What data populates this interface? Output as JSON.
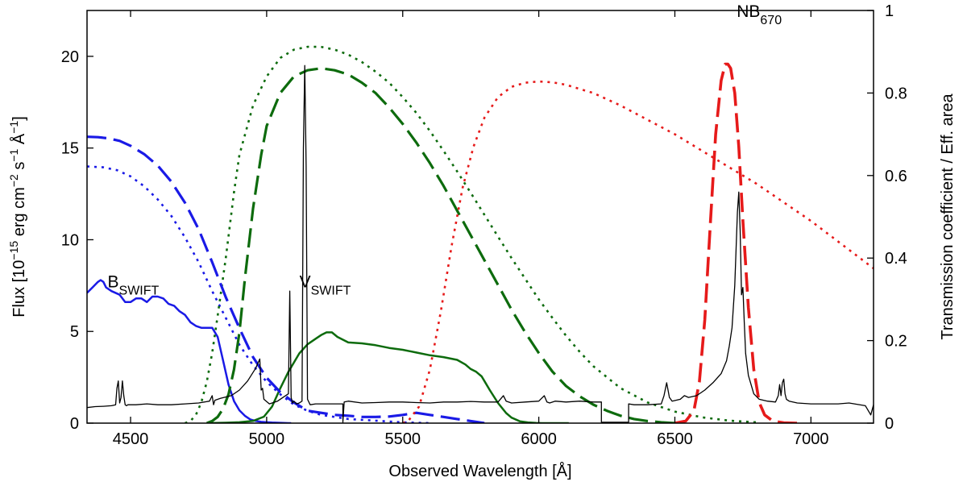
{
  "chart_data": {
    "type": "line",
    "title": "",
    "xlabel": "Observed Wavelength [Å]",
    "ylabel_left": {
      "main": "Flux [10",
      "exp1": "−15",
      "mid": " erg cm",
      "exp2": "−2",
      "mid2": " s",
      "exp3": "−1",
      "mid3": " Å",
      "exp4": "−1",
      "end": "]"
    },
    "ylabel_right": "Transmission coefficient / Eff. area",
    "xlim": [
      4340,
      7230
    ],
    "ylim_left": [
      0,
      22.5
    ],
    "ylim_right": [
      0,
      1
    ],
    "x_ticks": [
      4500,
      5000,
      5500,
      6000,
      6500,
      7000
    ],
    "y_ticks_left": [
      0,
      5,
      10,
      15,
      20
    ],
    "y_ticks_right": [
      0,
      0.2,
      0.4,
      0.6,
      0.8,
      1
    ],
    "annotations": [
      {
        "name": "label-b-swift",
        "base": "B",
        "sub": "SWIFT",
        "x": 4510,
        "y_right": 0.345
      },
      {
        "name": "label-v-swift",
        "base": "V",
        "sub": "SWIFT",
        "x": 5215,
        "y_right": 0.345
      },
      {
        "name": "label-nb670",
        "base": "NB",
        "sub": "670",
        "x": 6810,
        "y_right": 1.0
      }
    ],
    "series": [
      {
        "name": "Spectrum (black)",
        "axis": "left",
        "color": "#000000",
        "style": "solid",
        "width": 1.3,
        "x": [
          4340,
          4370,
          4400,
          4430,
          4445,
          4450,
          4455,
          4460,
          4465,
          4470,
          4475,
          4480,
          4485,
          4490,
          4520,
          4560,
          4600,
          4650,
          4700,
          4750,
          4790,
          4800,
          4805,
          4810,
          4830,
          4870,
          4900,
          4930,
          4960,
          4975,
          4980,
          4985,
          4990,
          5010,
          5040,
          5060,
          5080,
          5085,
          5090,
          5095,
          5100,
          5110,
          5120,
          5130,
          5135,
          5140,
          5145,
          5150,
          5160,
          5180,
          5200,
          5220,
          5240,
          5270,
          5280,
          5280,
          5285,
          5300,
          5350,
          5400,
          5450,
          5500,
          5550,
          5600,
          5650,
          5700,
          5750,
          5800,
          5850,
          5870,
          5880,
          5900,
          5950,
          6000,
          6020,
          6030,
          6040,
          6060,
          6100,
          6150,
          6200,
          6230,
          6230,
          6280,
          6330,
          6330,
          6350,
          6400,
          6450,
          6460,
          6470,
          6480,
          6490,
          6520,
          6535,
          6550,
          6580,
          6610,
          6640,
          6670,
          6690,
          6700,
          6710,
          6720,
          6730,
          6735,
          6740,
          6745,
          6750,
          6755,
          6760,
          6770,
          6790,
          6810,
          6840,
          6870,
          6880,
          6885,
          6890,
          6895,
          6900,
          6905,
          6910,
          6920,
          6950,
          7000,
          7050,
          7100,
          7140,
          7200,
          7220,
          7230
        ],
        "y": [
          0.85,
          0.9,
          0.92,
          0.95,
          1.0,
          1.9,
          2.3,
          1.1,
          1.4,
          2.3,
          1.5,
          1.0,
          0.95,
          1.0,
          1.0,
          1.05,
          1.0,
          1.0,
          1.05,
          1.1,
          1.2,
          1.5,
          1.0,
          1.25,
          1.35,
          1.5,
          1.8,
          2.3,
          3.0,
          3.5,
          1.8,
          1.9,
          1.3,
          1.05,
          1.2,
          1.4,
          1.6,
          7.2,
          1.4,
          1.1,
          1.2,
          1.05,
          1.1,
          1.2,
          15.0,
          19.5,
          14.0,
          1.3,
          1.0,
          1.05,
          1.05,
          1.05,
          1.05,
          1.05,
          1.05,
          0.05,
          1.15,
          1.2,
          1.1,
          1.12,
          1.15,
          1.15,
          1.12,
          1.1,
          1.15,
          1.15,
          1.18,
          1.15,
          1.15,
          1.5,
          1.2,
          1.1,
          1.15,
          1.2,
          1.5,
          1.15,
          1.1,
          1.2,
          1.15,
          1.2,
          1.15,
          1.15,
          0.05,
          0.05,
          0.05,
          1.05,
          1.0,
          1.0,
          1.05,
          1.5,
          2.2,
          1.4,
          1.2,
          1.3,
          1.5,
          1.4,
          1.5,
          1.8,
          2.2,
          2.7,
          3.4,
          4.2,
          5.2,
          7.5,
          11.5,
          12.6,
          10.5,
          7.0,
          7.4,
          5.5,
          3.8,
          2.6,
          1.6,
          1.3,
          1.2,
          1.15,
          1.5,
          2.1,
          1.5,
          2.2,
          2.4,
          1.6,
          1.3,
          1.2,
          1.1,
          1.05,
          1.05,
          1.05,
          1.1,
          0.95,
          0.45,
          1.0
        ]
      },
      {
        "name": "Spectrum in B_SWIFT (blue solid)",
        "axis": "left",
        "color": "#1a1ae6",
        "style": "solid",
        "width": 2.5,
        "x": [
          4340,
          4360,
          4380,
          4390,
          4400,
          4410,
          4430,
          4460,
          4480,
          4500,
          4520,
          4540,
          4560,
          4580,
          4600,
          4620,
          4640,
          4660,
          4680,
          4700,
          4720,
          4740,
          4760,
          4780,
          4800,
          4820,
          4840,
          4860,
          4880,
          4900,
          4920,
          4940,
          4960,
          4980,
          5000,
          5020,
          5040,
          5060,
          5080,
          5090
        ],
        "y": [
          7.1,
          7.4,
          7.7,
          7.8,
          7.7,
          7.4,
          7.2,
          7.0,
          6.6,
          6.6,
          6.8,
          6.8,
          6.6,
          6.9,
          6.9,
          6.8,
          6.5,
          6.4,
          6.1,
          5.9,
          5.5,
          5.3,
          5.2,
          5.2,
          5.2,
          4.7,
          3.4,
          2.1,
          1.2,
          0.7,
          0.4,
          0.2,
          0.12,
          0.07,
          0.05,
          0.03,
          0.02,
          0.01,
          0.0,
          0.0
        ]
      },
      {
        "name": "Spectrum in V_SWIFT (green solid)",
        "axis": "left",
        "color": "#0d6b0d",
        "style": "solid",
        "width": 2.5,
        "x": [
          4780,
          4850,
          4900,
          4950,
          4990,
          5020,
          5050,
          5080,
          5100,
          5120,
          5150,
          5180,
          5200,
          5220,
          5240,
          5260,
          5300,
          5350,
          5400,
          5450,
          5500,
          5550,
          5600,
          5650,
          5700,
          5730,
          5750,
          5770,
          5790,
          5800,
          5820,
          5850,
          5880,
          5900,
          5930,
          5960,
          5990,
          6010,
          6050,
          6080,
          6110
        ],
        "y": [
          0.0,
          0.02,
          0.05,
          0.12,
          0.35,
          0.9,
          1.9,
          2.8,
          3.3,
          3.8,
          4.3,
          4.6,
          4.8,
          4.95,
          4.95,
          4.7,
          4.4,
          4.35,
          4.25,
          4.1,
          4.0,
          3.85,
          3.7,
          3.6,
          3.45,
          3.2,
          2.95,
          2.8,
          2.55,
          2.3,
          1.8,
          1.1,
          0.55,
          0.3,
          0.1,
          0.04,
          0.01,
          0.0,
          0.0,
          0.0,
          0.0
        ]
      },
      {
        "name": "B_SWIFT effective area (blue dashed)",
        "axis": "right",
        "color": "#1a1ae6",
        "style": "dashed",
        "width": 3.2,
        "x": [
          4340,
          4380,
          4420,
          4460,
          4500,
          4550,
          4600,
          4650,
          4700,
          4750,
          4800,
          4850,
          4900,
          4950,
          5000,
          5050,
          5100,
          5150,
          5200,
          5250,
          5300,
          5350,
          5400,
          5450,
          5500,
          5550,
          5600,
          5650,
          5700,
          5750,
          5800
        ],
        "y": [
          0.694,
          0.693,
          0.69,
          0.684,
          0.672,
          0.652,
          0.624,
          0.585,
          0.534,
          0.47,
          0.39,
          0.305,
          0.23,
          0.16,
          0.11,
          0.075,
          0.05,
          0.03,
          0.025,
          0.02,
          0.018,
          0.015,
          0.015,
          0.016,
          0.02,
          0.025,
          0.02,
          0.015,
          0.01,
          0.005,
          0.0
        ]
      },
      {
        "name": "B_SWIFT transmission (blue dotted)",
        "axis": "right",
        "color": "#1a1ae6",
        "style": "dotted",
        "width": 2.6,
        "x": [
          4340,
          4400,
          4450,
          4500,
          4550,
          4600,
          4650,
          4700,
          4750,
          4800,
          4850,
          4900,
          4950,
          5000,
          5050,
          5100,
          5150,
          5200,
          5250,
          5300,
          5350,
          5400,
          5450,
          5500,
          5550,
          5600
        ],
        "y": [
          0.622,
          0.62,
          0.613,
          0.598,
          0.574,
          0.542,
          0.502,
          0.45,
          0.39,
          0.32,
          0.255,
          0.19,
          0.14,
          0.1,
          0.07,
          0.045,
          0.03,
          0.02,
          0.015,
          0.01,
          0.008,
          0.006,
          0.004,
          0.002,
          0.001,
          0.0
        ]
      },
      {
        "name": "V_SWIFT effective area (green dashed)",
        "axis": "right",
        "color": "#0d6b0d",
        "style": "dashed",
        "width": 3.2,
        "x": [
          4780,
          4800,
          4820,
          4840,
          4860,
          4880,
          4900,
          4920,
          4950,
          4980,
          5000,
          5050,
          5100,
          5150,
          5200,
          5250,
          5300,
          5350,
          5400,
          5450,
          5500,
          5550,
          5600,
          5650,
          5700,
          5750,
          5800,
          5850,
          5900,
          5950,
          6000,
          6050,
          6100,
          6150,
          6200,
          6250,
          6300,
          6350,
          6400,
          6450,
          6500
        ],
        "y": [
          0.0,
          0.005,
          0.015,
          0.035,
          0.07,
          0.13,
          0.22,
          0.35,
          0.52,
          0.65,
          0.72,
          0.8,
          0.84,
          0.855,
          0.86,
          0.855,
          0.845,
          0.825,
          0.8,
          0.765,
          0.725,
          0.68,
          0.63,
          0.575,
          0.515,
          0.455,
          0.395,
          0.335,
          0.275,
          0.22,
          0.17,
          0.125,
          0.09,
          0.065,
          0.045,
          0.03,
          0.018,
          0.01,
          0.005,
          0.002,
          0.0
        ]
      },
      {
        "name": "V_SWIFT transmission (green dotted)",
        "axis": "right",
        "color": "#0d6b0d",
        "style": "dotted",
        "width": 2.6,
        "x": [
          4700,
          4720,
          4740,
          4760,
          4780,
          4800,
          4820,
          4850,
          4880,
          4900,
          4950,
          5000,
          5050,
          5100,
          5150,
          5200,
          5250,
          5300,
          5350,
          5400,
          5450,
          5500,
          5550,
          5600,
          5650,
          5700,
          5750,
          5800,
          5850,
          5900,
          5950,
          6000,
          6050,
          6100,
          6150,
          6200,
          6300,
          6400,
          6500,
          6600,
          6700,
          6800
        ],
        "y": [
          0.0,
          0.005,
          0.02,
          0.05,
          0.1,
          0.17,
          0.26,
          0.4,
          0.56,
          0.65,
          0.77,
          0.84,
          0.885,
          0.905,
          0.912,
          0.912,
          0.905,
          0.893,
          0.875,
          0.852,
          0.825,
          0.79,
          0.752,
          0.708,
          0.66,
          0.61,
          0.558,
          0.505,
          0.452,
          0.4,
          0.35,
          0.3,
          0.255,
          0.212,
          0.173,
          0.138,
          0.085,
          0.05,
          0.028,
          0.014,
          0.006,
          0.002
        ]
      },
      {
        "name": "NB670 transmission (red dotted)",
        "axis": "right",
        "color": "#e61a1a",
        "style": "dotted",
        "width": 2.6,
        "x": [
          5500,
          5520,
          5560,
          5600,
          5640,
          5680,
          5720,
          5760,
          5800,
          5850,
          5900,
          5950,
          6000,
          6050,
          6100,
          6200,
          6300,
          6400,
          6500,
          6600,
          6700,
          6800,
          6900,
          7000,
          7100,
          7200,
          7230
        ],
        "y": [
          0.0,
          0.005,
          0.04,
          0.13,
          0.27,
          0.43,
          0.57,
          0.67,
          0.74,
          0.79,
          0.815,
          0.825,
          0.828,
          0.826,
          0.82,
          0.8,
          0.77,
          0.735,
          0.7,
          0.66,
          0.62,
          0.58,
          0.535,
          0.49,
          0.44,
          0.39,
          0.375
        ]
      },
      {
        "name": "NB670 filter (red dashed)",
        "axis": "right",
        "color": "#e61a1a",
        "style": "dashed",
        "width": 3.6,
        "x": [
          6500,
          6540,
          6570,
          6590,
          6610,
          6630,
          6650,
          6670,
          6685,
          6695,
          6705,
          6720,
          6735,
          6750,
          6770,
          6790,
          6810,
          6830,
          6860,
          6900,
          6950
        ],
        "y": [
          0.0,
          0.005,
          0.03,
          0.1,
          0.25,
          0.48,
          0.7,
          0.83,
          0.87,
          0.87,
          0.86,
          0.8,
          0.67,
          0.49,
          0.28,
          0.13,
          0.05,
          0.02,
          0.005,
          0.001,
          0.0
        ]
      }
    ]
  }
}
